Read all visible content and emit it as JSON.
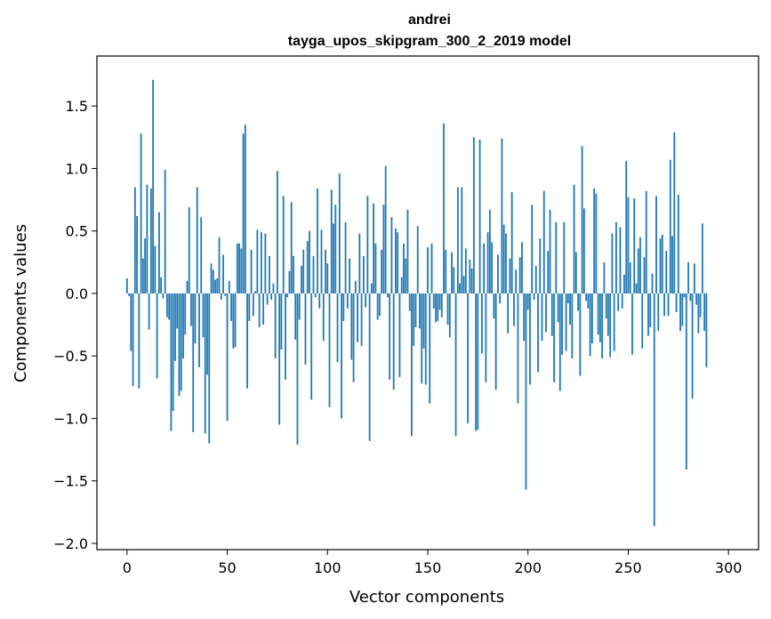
{
  "chart_data": {
    "type": "bar",
    "title_line1": "andrei",
    "title_line2": "tayga_upos_skipgram_300_2_2019 model",
    "xlabel": "Vector components",
    "ylabel": "Components values",
    "xlim": [
      -15,
      315
    ],
    "ylim": [
      -2.05,
      1.9
    ],
    "xticks": [
      0,
      50,
      100,
      150,
      200,
      250,
      300
    ],
    "yticks": [
      -2.0,
      -1.5,
      -1.0,
      -0.5,
      0.0,
      0.5,
      1.0,
      1.5
    ],
    "xtick_labels": [
      "0",
      "50",
      "100",
      "150",
      "200",
      "250",
      "300"
    ],
    "ytick_labels": [
      "−2.0",
      "−1.5",
      "−1.0",
      "−0.5",
      "0.0",
      "0.5",
      "1.0",
      "1.5"
    ],
    "bar_color": "#1f77b4",
    "series": [
      {
        "name": "andrei",
        "values": [
          0.12,
          -0.02,
          -0.46,
          -0.74,
          0.85,
          0.62,
          -0.76,
          1.28,
          0.28,
          0.44,
          0.87,
          -0.29,
          0.84,
          1.71,
          0.38,
          -0.68,
          0.65,
          0.13,
          -0.04,
          0.99,
          -0.19,
          -0.21,
          -1.1,
          -0.94,
          -0.54,
          -0.28,
          -0.82,
          -0.78,
          -0.52,
          -0.33,
          0.1,
          0.69,
          -0.26,
          -1.11,
          -0.4,
          0.85,
          -0.59,
          0.61,
          -0.35,
          -1.12,
          -0.65,
          -1.2,
          0.24,
          0.19,
          0.11,
          0.12,
          0.45,
          -0.05,
          0.31,
          -0.02,
          -1.02,
          0.1,
          -0.22,
          -0.44,
          -0.43,
          0.4,
          0.4,
          0.36,
          1.28,
          1.35,
          -0.76,
          -0.22,
          0.35,
          -0.18,
          0.02,
          0.51,
          -0.27,
          0.49,
          -0.25,
          0.48,
          -0.09,
          0.3,
          -0.05,
          0.08,
          -0.52,
          0.98,
          -1.05,
          -0.45,
          0.78,
          -0.69,
          -0.03,
          0.18,
          0.73,
          0.3,
          -0.37,
          -1.21,
          -0.21,
          0.22,
          0.35,
          -0.57,
          0.42,
          0.5,
          -0.85,
          0.3,
          -0.03,
          0.84,
          -0.12,
          0.51,
          -0.38,
          0.35,
          0.24,
          -0.91,
          0.83,
          0.56,
          0.71,
          -0.55,
          0.96,
          -1.0,
          -0.22,
          0.57,
          -0.12,
          0.28,
          -0.53,
          -0.71,
          0.1,
          -0.39,
          0.48,
          -0.42,
          0.3,
          -0.11,
          0.78,
          -1.18,
          0.08,
          0.72,
          0.4,
          -0.21,
          -0.18,
          0.35,
          0.71,
          1.02,
          -0.03,
          -0.69,
          0.61,
          -0.77,
          0.52,
          0.49,
          -0.67,
          0.13,
          0.4,
          0.28,
          0.67,
          -0.14,
          -1.14,
          -0.42,
          -0.27,
          0.54,
          -0.28,
          -0.72,
          -0.44,
          -0.73,
          0.37,
          -0.88,
          0.4,
          -0.12,
          -0.23,
          -0.22,
          -0.13,
          -0.19,
          1.36,
          0.35,
          -0.25,
          -0.35,
          0.33,
          0.21,
          -1.14,
          0.85,
          0.08,
          0.85,
          0.14,
          0.36,
          -1.04,
          0.27,
          0.2,
          1.25,
          -1.1,
          -1.09,
          1.23,
          -0.48,
          0.4,
          -0.71,
          0.49,
          0.67,
          0.41,
          -0.2,
          -0.77,
          0.31,
          -0.08,
          1.24,
          0.55,
          0.48,
          -0.32,
          0.28,
          0.81,
          -0.26,
          0.19,
          -0.88,
          0.29,
          0.41,
          -0.38,
          -1.57,
          -0.13,
          -0.73,
          0.71,
          -0.05,
          0.22,
          -0.63,
          0.44,
          -0.38,
          0.82,
          -0.31,
          0.34,
          0.67,
          -0.34,
          -0.71,
          0.57,
          -0.23,
          -0.78,
          -0.49,
          0.57,
          -0.46,
          -0.08,
          -0.25,
          -0.52,
          0.87,
          0.33,
          -0.14,
          -0.66,
          1.18,
          0.68,
          -0.06,
          -0.12,
          -0.5,
          -0.4,
          0.84,
          0.8,
          -0.33,
          -0.39,
          -0.52,
          0.25,
          -0.2,
          -0.34,
          -0.51,
          0.48,
          -0.46,
          0.57,
          -0.14,
          0.53,
          -0.12,
          0.15,
          1.06,
          0.77,
          0.25,
          -0.49,
          0.76,
          0.08,
          0.36,
          0.45,
          -0.44,
          0.29,
          0.82,
          -0.34,
          -0.27,
          0.16,
          -1.86,
          0.78,
          -0.3,
          0.44,
          0.47,
          -0.18,
          0.34,
          -0.18,
          1.07,
          0.46,
          1.29,
          -0.15,
          0.79,
          -0.3,
          -0.26,
          -0.03,
          -1.41,
          0.25,
          -0.06,
          -0.84,
          0.24,
          -0.09,
          -0.32,
          -0.19,
          0.56,
          -0.3,
          -0.59
        ]
      }
    ]
  }
}
